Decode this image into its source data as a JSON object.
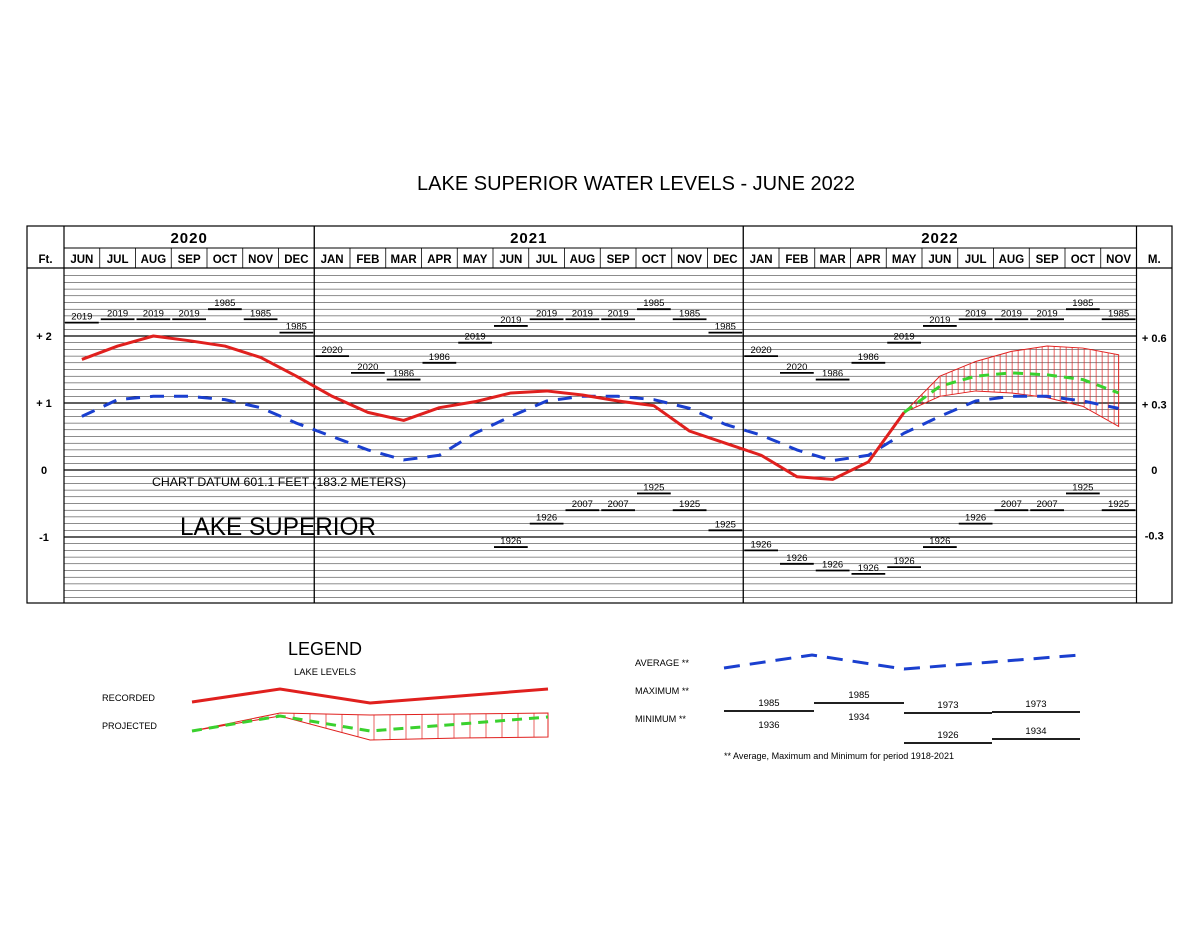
{
  "chart_data": {
    "type": "line",
    "title": "LAKE SUPERIOR WATER LEVELS - JUNE 2022",
    "years": [
      {
        "label": "2020",
        "start": 0,
        "span": 7
      },
      {
        "label": "2021",
        "start": 7,
        "span": 12
      },
      {
        "label": "2022",
        "start": 19,
        "span": 11
      }
    ],
    "months": [
      "JUN",
      "JUL",
      "AUG",
      "SEP",
      "OCT",
      "NOV",
      "DEC",
      "JAN",
      "FEB",
      "MAR",
      "APR",
      "MAY",
      "JUN",
      "JUL",
      "AUG",
      "SEP",
      "OCT",
      "NOV",
      "DEC",
      "JAN",
      "FEB",
      "MAR",
      "APR",
      "MAY",
      "JUN",
      "JUL",
      "AUG",
      "SEP",
      "OCT",
      "NOV"
    ],
    "left_unit": "Ft.",
    "right_unit": "M.",
    "left_ticks": [
      {
        "v": 2,
        "label": "+ 2"
      },
      {
        "v": 1,
        "label": "+ 1"
      },
      {
        "v": 0,
        "label": "0"
      },
      {
        "v": -1,
        "label": "-1"
      }
    ],
    "right_ticks": [
      {
        "v": 1.97,
        "label": "+ 0.6"
      },
      {
        "v": 0.98,
        "label": "+ 0.3"
      },
      {
        "v": 0,
        "label": "0"
      },
      {
        "v": -0.98,
        "label": "-0.3"
      }
    ],
    "ylim_ft": [
      -2,
      2.9
    ],
    "datum_text": "CHART DATUM  601.1 FEET (183.2 METERS)",
    "lake_label": "LAKE SUPERIOR",
    "max_records": [
      {
        "m": 0,
        "year": "2019",
        "v": 2.2
      },
      {
        "m": 1,
        "year": "2019",
        "v": 2.25
      },
      {
        "m": 2,
        "year": "2019",
        "v": 2.25
      },
      {
        "m": 3,
        "year": "2019",
        "v": 2.25
      },
      {
        "m": 4,
        "year": "1985",
        "v": 2.4
      },
      {
        "m": 5,
        "year": "1985",
        "v": 2.25
      },
      {
        "m": 6,
        "year": "1985",
        "v": 2.05
      },
      {
        "m": 7,
        "year": "2020",
        "v": 1.7
      },
      {
        "m": 8,
        "year": "2020",
        "v": 1.45
      },
      {
        "m": 9,
        "year": "1986",
        "v": 1.35
      },
      {
        "m": 10,
        "year": "1986",
        "v": 1.6
      },
      {
        "m": 11,
        "year": "2019",
        "v": 1.9
      },
      {
        "m": 12,
        "year": "2019",
        "v": 2.15
      },
      {
        "m": 13,
        "year": "2019",
        "v": 2.25
      },
      {
        "m": 14,
        "year": "2019",
        "v": 2.25
      },
      {
        "m": 15,
        "year": "2019",
        "v": 2.25
      },
      {
        "m": 16,
        "year": "1985",
        "v": 2.4
      },
      {
        "m": 17,
        "year": "1985",
        "v": 2.25
      },
      {
        "m": 18,
        "year": "1985",
        "v": 2.05
      },
      {
        "m": 19,
        "year": "2020",
        "v": 1.7
      },
      {
        "m": 20,
        "year": "2020",
        "v": 1.45
      },
      {
        "m": 21,
        "year": "1986",
        "v": 1.35
      },
      {
        "m": 22,
        "year": "1986",
        "v": 1.6
      },
      {
        "m": 23,
        "year": "2019",
        "v": 1.9
      },
      {
        "m": 24,
        "year": "2019",
        "v": 2.15
      },
      {
        "m": 25,
        "year": "2019",
        "v": 2.25
      },
      {
        "m": 26,
        "year": "2019",
        "v": 2.25
      },
      {
        "m": 27,
        "year": "2019",
        "v": 2.25
      },
      {
        "m": 28,
        "year": "1985",
        "v": 2.4
      },
      {
        "m": 29,
        "year": "1985",
        "v": 2.25
      }
    ],
    "min_records": [
      {
        "m": 12,
        "year": "1926",
        "v": -1.15
      },
      {
        "m": 13,
        "year": "1926",
        "v": -0.8
      },
      {
        "m": 14,
        "year": "2007",
        "v": -0.6
      },
      {
        "m": 15,
        "year": "2007",
        "v": -0.6
      },
      {
        "m": 16,
        "year": "1925",
        "v": -0.35
      },
      {
        "m": 17,
        "year": "1925",
        "v": -0.6
      },
      {
        "m": 18,
        "year": "1925",
        "v": -0.9
      },
      {
        "m": 19,
        "year": "1926",
        "v": -1.2
      },
      {
        "m": 20,
        "year": "1926",
        "v": -1.4
      },
      {
        "m": 21,
        "year": "1926",
        "v": -1.5
      },
      {
        "m": 22,
        "year": "1926",
        "v": -1.55
      },
      {
        "m": 23,
        "year": "1926",
        "v": -1.45
      },
      {
        "m": 24,
        "year": "1926",
        "v": -1.15
      },
      {
        "m": 25,
        "year": "1926",
        "v": -0.8
      },
      {
        "m": 26,
        "year": "2007",
        "v": -0.6
      },
      {
        "m": 27,
        "year": "2007",
        "v": -0.6
      },
      {
        "m": 28,
        "year": "1925",
        "v": -0.35
      },
      {
        "m": 29,
        "year": "1925",
        "v": -0.6
      }
    ],
    "series": [
      {
        "name": "RECORDED",
        "color": "#e0201e",
        "x": [
          0,
          1,
          2,
          3,
          4,
          5,
          6,
          7,
          8,
          9,
          10,
          11,
          12,
          13,
          14,
          15,
          16,
          17,
          18,
          19,
          20,
          21,
          22,
          23
        ],
        "y": [
          1.65,
          1.85,
          2.0,
          1.93,
          1.85,
          1.68,
          1.4,
          1.1,
          0.86,
          0.74,
          0.93,
          1.02,
          1.15,
          1.18,
          1.12,
          1.03,
          0.96,
          0.58,
          0.4,
          0.22,
          -0.1,
          -0.14,
          0.12,
          0.86
        ]
      },
      {
        "name": "AVERAGE",
        "color": "#1a3fcf",
        "x": [
          0,
          1,
          2,
          3,
          4,
          5,
          6,
          7,
          8,
          9,
          10,
          11,
          12,
          13,
          14,
          15,
          16,
          17,
          18,
          19,
          20,
          21,
          22,
          23,
          24,
          25,
          26,
          27,
          28,
          29
        ],
        "y": [
          0.8,
          1.05,
          1.1,
          1.1,
          1.05,
          0.93,
          0.7,
          0.5,
          0.3,
          0.15,
          0.22,
          0.55,
          0.8,
          1.03,
          1.1,
          1.1,
          1.05,
          0.92,
          0.68,
          0.52,
          0.3,
          0.14,
          0.22,
          0.55,
          0.8,
          1.03,
          1.1,
          1.1,
          1.03,
          0.92
        ]
      },
      {
        "name": "PROJECTED",
        "color": "#3ad12e",
        "x": [
          23,
          24,
          25,
          26,
          27,
          28,
          29
        ],
        "y": [
          0.86,
          1.25,
          1.4,
          1.45,
          1.42,
          1.35,
          1.15
        ]
      }
    ],
    "projected_band": {
      "x": [
        23,
        24,
        25,
        26,
        27,
        28,
        29
      ],
      "upper": [
        0.86,
        1.4,
        1.62,
        1.77,
        1.85,
        1.82,
        1.72
      ],
      "lower": [
        0.86,
        1.1,
        1.18,
        1.15,
        1.08,
        0.95,
        0.65
      ]
    }
  },
  "legend": {
    "title": "LEGEND",
    "subtitle": "LAKE LEVELS",
    "recorded_label": "RECORDED",
    "projected_label": "PROJECTED",
    "average_label": "AVERAGE **",
    "maximum_label": "MAXIMUM **",
    "minimum_label": "MINIMUM **",
    "max_years": [
      "1985",
      "1985",
      "1973",
      "1973"
    ],
    "min_years": [
      "1936",
      "1934",
      "1926",
      "1934"
    ],
    "footnote": "** Average, Maximum and Minimum for period 1918-2021"
  }
}
